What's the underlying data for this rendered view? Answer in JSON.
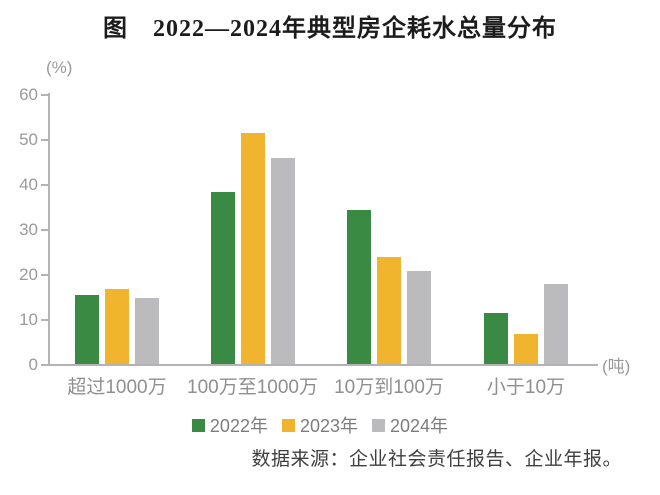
{
  "title": "图　2022—2024年典型房企耗水总量分布",
  "chart_data": {
    "type": "bar",
    "title": "图　2022—2024年典型房企耗水总量分布",
    "categories": [
      "超过1000万",
      "100万至1000万",
      "10万到100万",
      "小于10万"
    ],
    "series": [
      {
        "name": "2022年",
        "color": "#3a8a43",
        "values": [
          15.5,
          38.5,
          34.5,
          11.5
        ]
      },
      {
        "name": "2023年",
        "color": "#f0b42f",
        "values": [
          17,
          51.5,
          24,
          7
        ]
      },
      {
        "name": "2024年",
        "color": "#bbbbbe",
        "values": [
          15,
          46,
          21,
          18
        ]
      }
    ],
    "y_unit": "(%)",
    "x_unit": "(吨)",
    "ylabel": "",
    "xlabel": "",
    "ylim": [
      0,
      60
    ],
    "yticks": [
      0,
      10,
      20,
      30,
      40,
      50,
      60
    ],
    "grid": false,
    "legend_position": "bottom"
  },
  "source": "数据来源：企业社会责任报告、企业年报。",
  "colors": {
    "axis": "#b3b3b6",
    "tick_text": "#9a9a9a",
    "category_text": "#8f8f8f",
    "legend_text": "#7d7d7d",
    "title_text": "#1c1c1c",
    "source_text": "#3f3f3f"
  }
}
